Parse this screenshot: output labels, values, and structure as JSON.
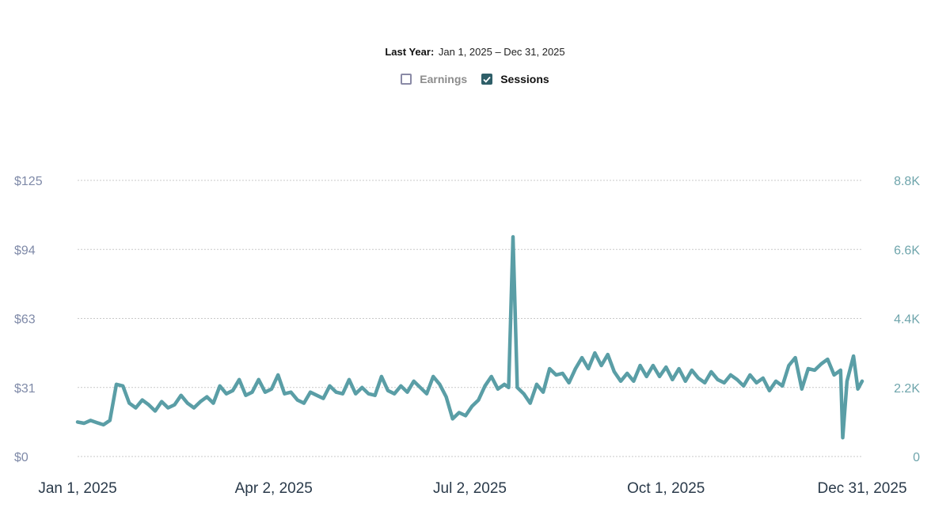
{
  "header": {
    "range_label": "Last Year:",
    "range_value": "Jan 1, 2025 – Dec 31, 2025"
  },
  "legend": {
    "earnings": {
      "label": "Earnings",
      "checked": false
    },
    "sessions": {
      "label": "Sessions",
      "checked": true
    }
  },
  "colors": {
    "sessions_line": "#5a9ea6",
    "grid": "#c9c9c9",
    "left_axis": "#7f8aa8",
    "right_axis": "#6fa5ac"
  },
  "chart_data": {
    "type": "line",
    "title": "",
    "x_tick_labels": [
      "Jan 1, 2025",
      "Apr 2, 2025",
      "Jul 2, 2025",
      "Oct 1, 2025",
      "Dec 31, 2025"
    ],
    "left_axis": {
      "label": "Earnings",
      "ticks": [
        "$0",
        "$31",
        "$63",
        "$94",
        "$125"
      ],
      "ylim": [
        0,
        125
      ]
    },
    "right_axis": {
      "label": "Sessions",
      "ticks": [
        "0",
        "2.2K",
        "4.4K",
        "6.6K",
        "8.8K"
      ],
      "ylim": [
        0,
        8800
      ]
    },
    "series": [
      {
        "name": "Sessions",
        "axis": "right",
        "x_range_days": [
          0,
          364
        ],
        "anchors_day_value": [
          [
            0,
            1100
          ],
          [
            3,
            1060
          ],
          [
            6,
            1150
          ],
          [
            9,
            1080
          ],
          [
            12,
            1010
          ],
          [
            15,
            1150
          ],
          [
            18,
            2300
          ],
          [
            21,
            2250
          ],
          [
            24,
            1700
          ],
          [
            27,
            1550
          ],
          [
            30,
            1800
          ],
          [
            33,
            1650
          ],
          [
            36,
            1450
          ],
          [
            39,
            1750
          ],
          [
            42,
            1550
          ],
          [
            45,
            1650
          ],
          [
            48,
            1950
          ],
          [
            51,
            1700
          ],
          [
            54,
            1550
          ],
          [
            57,
            1750
          ],
          [
            60,
            1900
          ],
          [
            63,
            1700
          ],
          [
            66,
            2250
          ],
          [
            69,
            2000
          ],
          [
            72,
            2100
          ],
          [
            75,
            2450
          ],
          [
            78,
            1950
          ],
          [
            81,
            2050
          ],
          [
            84,
            2450
          ],
          [
            87,
            2050
          ],
          [
            90,
            2150
          ],
          [
            93,
            2600
          ],
          [
            96,
            2000
          ],
          [
            99,
            2050
          ],
          [
            102,
            1800
          ],
          [
            105,
            1700
          ],
          [
            108,
            2050
          ],
          [
            111,
            1950
          ],
          [
            114,
            1850
          ],
          [
            117,
            2250
          ],
          [
            120,
            2050
          ],
          [
            123,
            2000
          ],
          [
            126,
            2450
          ],
          [
            129,
            2000
          ],
          [
            132,
            2200
          ],
          [
            135,
            2000
          ],
          [
            138,
            1950
          ],
          [
            141,
            2550
          ],
          [
            144,
            2100
          ],
          [
            147,
            2000
          ],
          [
            150,
            2250
          ],
          [
            153,
            2050
          ],
          [
            156,
            2400
          ],
          [
            159,
            2200
          ],
          [
            162,
            2000
          ],
          [
            165,
            2550
          ],
          [
            168,
            2300
          ],
          [
            171,
            1900
          ],
          [
            174,
            1200
          ],
          [
            177,
            1400
          ],
          [
            180,
            1300
          ],
          [
            183,
            1600
          ],
          [
            186,
            1800
          ],
          [
            189,
            2250
          ],
          [
            192,
            2550
          ],
          [
            195,
            2150
          ],
          [
            198,
            2300
          ],
          [
            200,
            2200
          ],
          [
            202,
            7000
          ],
          [
            204,
            2200
          ],
          [
            207,
            2000
          ],
          [
            210,
            1700
          ],
          [
            213,
            2300
          ],
          [
            216,
            2050
          ],
          [
            219,
            2800
          ],
          [
            222,
            2600
          ],
          [
            225,
            2650
          ],
          [
            228,
            2350
          ],
          [
            231,
            2800
          ],
          [
            234,
            3150
          ],
          [
            237,
            2800
          ],
          [
            240,
            3300
          ],
          [
            243,
            2900
          ],
          [
            246,
            3250
          ],
          [
            249,
            2700
          ],
          [
            252,
            2400
          ],
          [
            255,
            2650
          ],
          [
            258,
            2400
          ],
          [
            261,
            2900
          ],
          [
            264,
            2550
          ],
          [
            267,
            2900
          ],
          [
            270,
            2550
          ],
          [
            273,
            2850
          ],
          [
            276,
            2450
          ],
          [
            279,
            2800
          ],
          [
            282,
            2400
          ],
          [
            285,
            2750
          ],
          [
            288,
            2500
          ],
          [
            291,
            2350
          ],
          [
            294,
            2700
          ],
          [
            297,
            2450
          ],
          [
            300,
            2350
          ],
          [
            303,
            2600
          ],
          [
            306,
            2450
          ],
          [
            309,
            2250
          ],
          [
            312,
            2600
          ],
          [
            315,
            2350
          ],
          [
            318,
            2500
          ],
          [
            321,
            2100
          ],
          [
            324,
            2400
          ],
          [
            327,
            2250
          ],
          [
            330,
            2900
          ],
          [
            333,
            3150
          ],
          [
            336,
            2150
          ],
          [
            339,
            2800
          ],
          [
            342,
            2750
          ],
          [
            345,
            2950
          ],
          [
            348,
            3100
          ],
          [
            351,
            2600
          ],
          [
            354,
            2750
          ],
          [
            357,
            2400
          ],
          [
            360,
            3200
          ],
          [
            362,
            2150
          ],
          [
            364,
            2400
          ]
        ]
      },
      {
        "name": "Earnings",
        "axis": "left",
        "hidden": true,
        "values": []
      }
    ]
  }
}
